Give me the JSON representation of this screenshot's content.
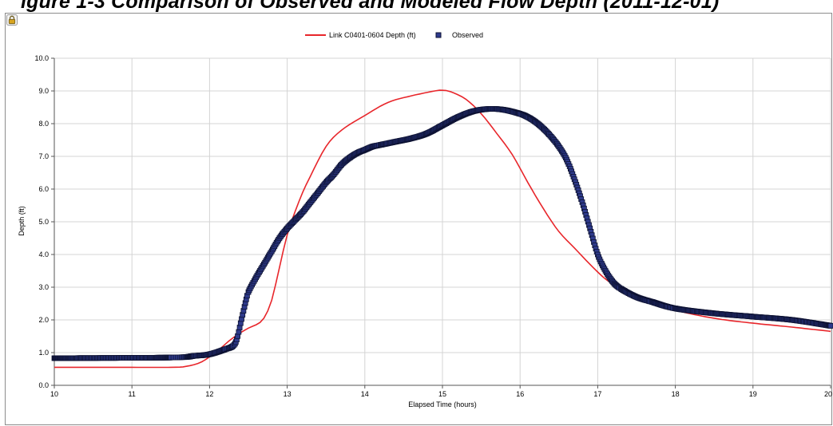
{
  "caption": {
    "text": "igure 1-3 Comparison of Observed and Modeled Flow Depth (2011-12-01)"
  },
  "colors": {
    "model_line": "#e8262b",
    "observed_marker": "#2e3a8c",
    "observed_edge": "#0d1233",
    "grid": "#d4d4d4"
  },
  "chart_data": {
    "type": "line",
    "title": "",
    "xlabel": "Elapsed Time (hours)",
    "ylabel": "Depth (ft)",
    "xlim": [
      10,
      20
    ],
    "ylim": [
      0,
      10
    ],
    "x_ticks": [
      "10",
      "11",
      "12",
      "13",
      "14",
      "15",
      "16",
      "17",
      "18",
      "19",
      "20"
    ],
    "y_ticks": [
      "0.0",
      "1.0",
      "2.0",
      "3.0",
      "4.0",
      "5.0",
      "6.0",
      "7.0",
      "8.0",
      "9.0",
      "10.0"
    ],
    "grid": true,
    "legend_position": "top-center",
    "series": [
      {
        "name": "Link C0401-0604 Depth (ft)",
        "style": "line",
        "x": [
          10,
          11,
          11.5,
          11.7,
          11.9,
          12.1,
          12.3,
          12.5,
          12.6,
          12.7,
          12.8,
          12.9,
          13.0,
          13.1,
          13.2,
          13.3,
          13.5,
          13.7,
          14.0,
          14.3,
          14.6,
          14.9,
          15.0,
          15.1,
          15.3,
          15.5,
          15.7,
          15.9,
          16.1,
          16.3,
          16.5,
          16.7,
          16.9,
          17.1,
          17.3,
          17.5,
          18.0,
          18.5,
          19.0,
          19.5,
          20.0
        ],
        "y": [
          0.55,
          0.55,
          0.55,
          0.58,
          0.72,
          1.05,
          1.45,
          1.75,
          1.85,
          2.05,
          2.6,
          3.6,
          4.6,
          5.3,
          5.9,
          6.4,
          7.3,
          7.8,
          8.25,
          8.65,
          8.85,
          9.0,
          9.02,
          8.98,
          8.75,
          8.3,
          7.7,
          7.05,
          6.2,
          5.4,
          4.7,
          4.2,
          3.7,
          3.25,
          2.95,
          2.7,
          2.3,
          2.05,
          1.9,
          1.78,
          1.65
        ]
      },
      {
        "name": "Observed",
        "style": "markers",
        "x": [
          10,
          11.5,
          11.8,
          12.0,
          12.2,
          12.3,
          12.35,
          12.4,
          12.45,
          12.5,
          12.6,
          12.7,
          12.8,
          12.9,
          13.0,
          13.1,
          13.2,
          13.3,
          13.4,
          13.5,
          13.6,
          13.7,
          13.8,
          13.9,
          14.0,
          14.1,
          14.2,
          14.4,
          14.6,
          14.8,
          15.0,
          15.2,
          15.4,
          15.6,
          15.8,
          16.0,
          16.1,
          16.2,
          16.3,
          16.4,
          16.5,
          16.6,
          16.7,
          16.8,
          16.9,
          17.0,
          17.1,
          17.2,
          17.3,
          17.5,
          17.7,
          18.0,
          18.5,
          19.0,
          19.5,
          20.0
        ],
        "y": [
          0.83,
          0.85,
          0.9,
          0.95,
          1.1,
          1.2,
          1.4,
          1.9,
          2.4,
          2.85,
          3.3,
          3.7,
          4.1,
          4.5,
          4.8,
          5.05,
          5.3,
          5.6,
          5.9,
          6.2,
          6.45,
          6.75,
          6.95,
          7.1,
          7.2,
          7.3,
          7.35,
          7.45,
          7.55,
          7.7,
          7.95,
          8.2,
          8.38,
          8.45,
          8.42,
          8.3,
          8.2,
          8.05,
          7.85,
          7.6,
          7.3,
          6.9,
          6.3,
          5.6,
          4.8,
          4.0,
          3.5,
          3.15,
          2.95,
          2.7,
          2.55,
          2.35,
          2.2,
          2.1,
          2.0,
          1.82
        ]
      }
    ]
  }
}
